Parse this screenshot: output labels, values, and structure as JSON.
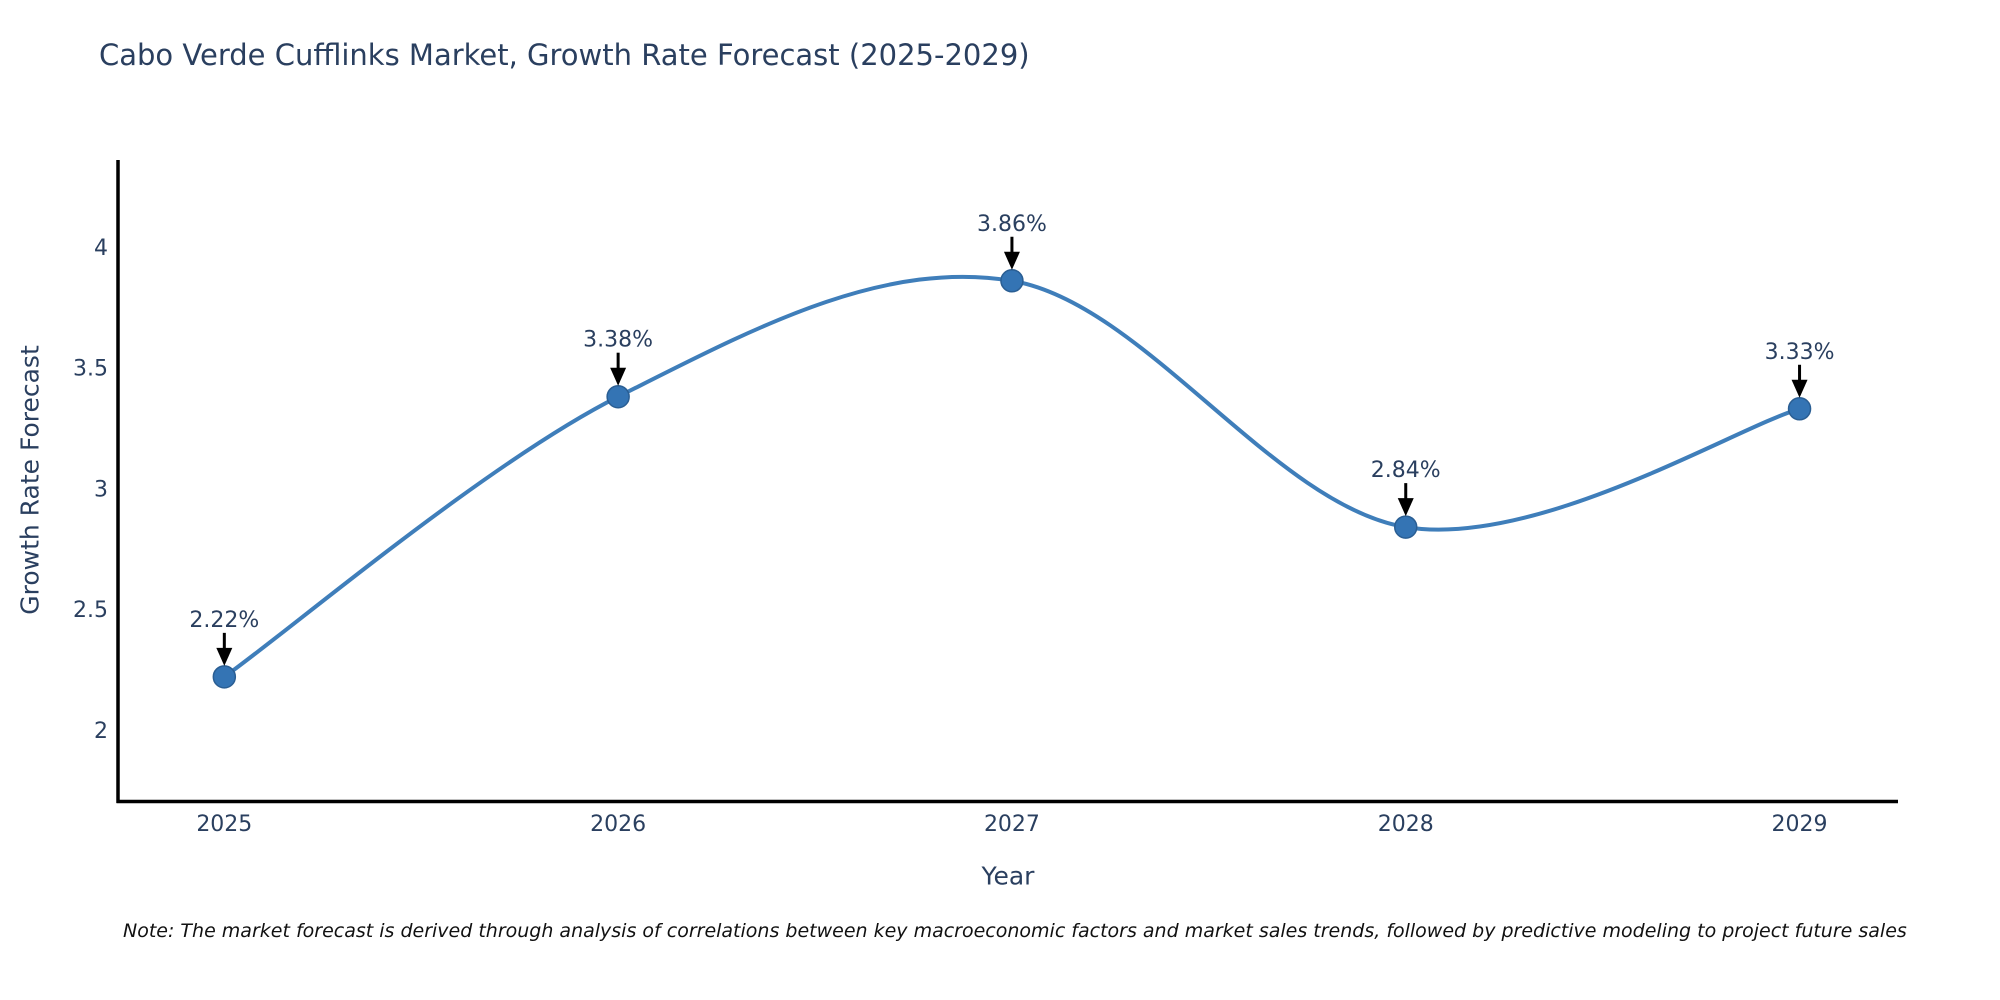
{
  "title": "Cabo Verde Cufflinks Market, Growth Rate Forecast (2025-2029)",
  "note": "Note: The market forecast is derived through analysis of correlations between key macroeconomic factors and market sales trends, followed by predictive modeling to project future sales",
  "chart_data": {
    "type": "line",
    "title": "Cabo Verde Cufflinks Market, Growth Rate Forecast (2025-2029)",
    "xlabel": "Year",
    "ylabel": "Growth Rate Forecast",
    "x": [
      2025,
      2026,
      2027,
      2028,
      2029
    ],
    "y": [
      2.22,
      3.38,
      3.86,
      2.84,
      3.33
    ],
    "point_labels": [
      "2.22%",
      "3.38%",
      "3.86%",
      "2.84%",
      "3.33%"
    ],
    "xtick_labels": [
      "2025",
      "2026",
      "2027",
      "2028",
      "2029"
    ],
    "yticks": [
      2,
      2.5,
      3,
      3.5,
      4
    ],
    "ytick_labels": [
      "2",
      "2.5",
      "3",
      "3.5",
      "4"
    ],
    "xlim": [
      2024.73,
      2029.25
    ],
    "ylim": [
      1.706,
      4.36
    ],
    "grid": false,
    "legend": "none",
    "line_color": "#3f7eba",
    "marker_color": "#3474b4",
    "marker_edge_color": "#2a5e93",
    "axis_color": "#000000",
    "text_color": "#2a3f5f",
    "annotation_arrow_color": "#000000"
  }
}
